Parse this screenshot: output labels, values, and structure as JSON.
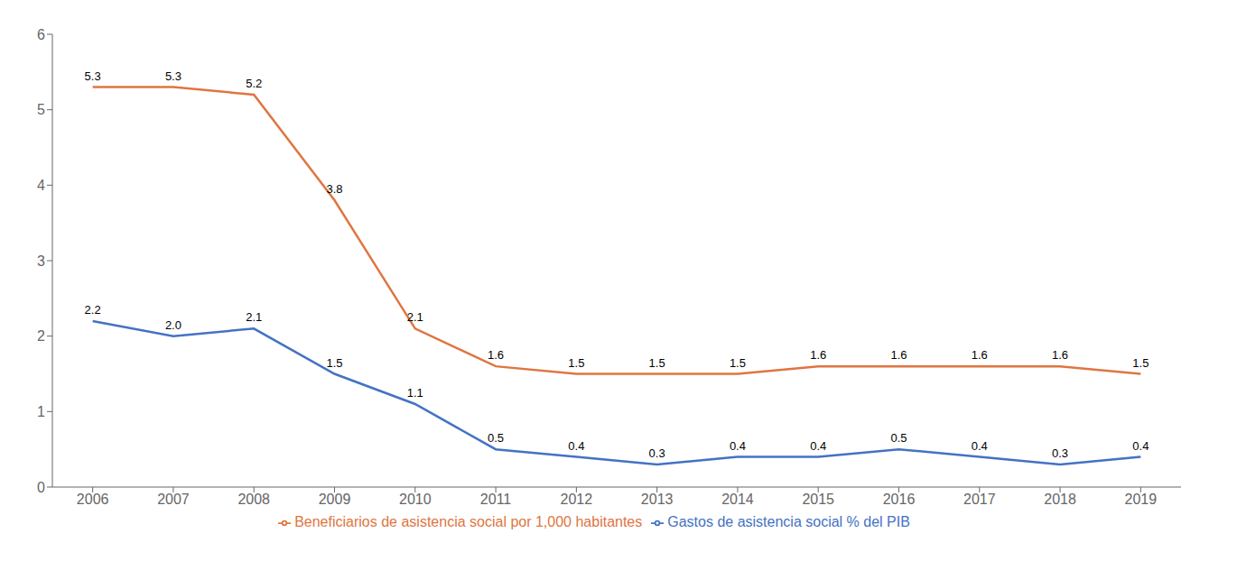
{
  "chart_data": {
    "type": "line",
    "x": [
      2006,
      2007,
      2008,
      2009,
      2010,
      2011,
      2012,
      2013,
      2014,
      2015,
      2016,
      2017,
      2018,
      2019
    ],
    "xlim": [
      2005.5,
      2019.5
    ],
    "xticks": [
      2006,
      2007,
      2008,
      2009,
      2010,
      2011,
      2012,
      2013,
      2014,
      2015,
      2016,
      2017,
      2018,
      2019
    ],
    "ylim": [
      0,
      6
    ],
    "yticks": [
      0,
      1,
      2,
      3,
      4,
      5,
      6
    ],
    "grid": false,
    "legend": "bottom",
    "data_labels": true,
    "series": [
      {
        "name": "Gastos de asistencia social % del PIB",
        "color": "#4472C4",
        "values": [
          2.2,
          2.0,
          2.1,
          1.5,
          1.1,
          0.5,
          0.4,
          0.3,
          0.4,
          0.4,
          0.5,
          0.4,
          0.3,
          0.4
        ],
        "value_labels": [
          "2.2",
          "2.0",
          "2.1",
          "1.5",
          "1.1",
          "0.5",
          "0.4",
          "0.3",
          "0.4",
          "0.4",
          "0.5",
          "0.4",
          "0.3",
          "0.4"
        ]
      },
      {
        "name": "Beneficiarios de asistencia social por 1,000 habitantes",
        "color": "#E07540",
        "values": [
          5.3,
          5.3,
          5.2,
          3.8,
          2.1,
          1.6,
          1.5,
          1.5,
          1.5,
          1.6,
          1.6,
          1.6,
          1.6,
          1.5
        ],
        "value_labels": [
          "5.3",
          "5.3",
          "5.2",
          "3.8",
          "2.1",
          "1.6",
          "1.5",
          "1.5",
          "1.5",
          "1.6",
          "1.6",
          "1.6",
          "1.6",
          "1.5"
        ]
      }
    ]
  }
}
